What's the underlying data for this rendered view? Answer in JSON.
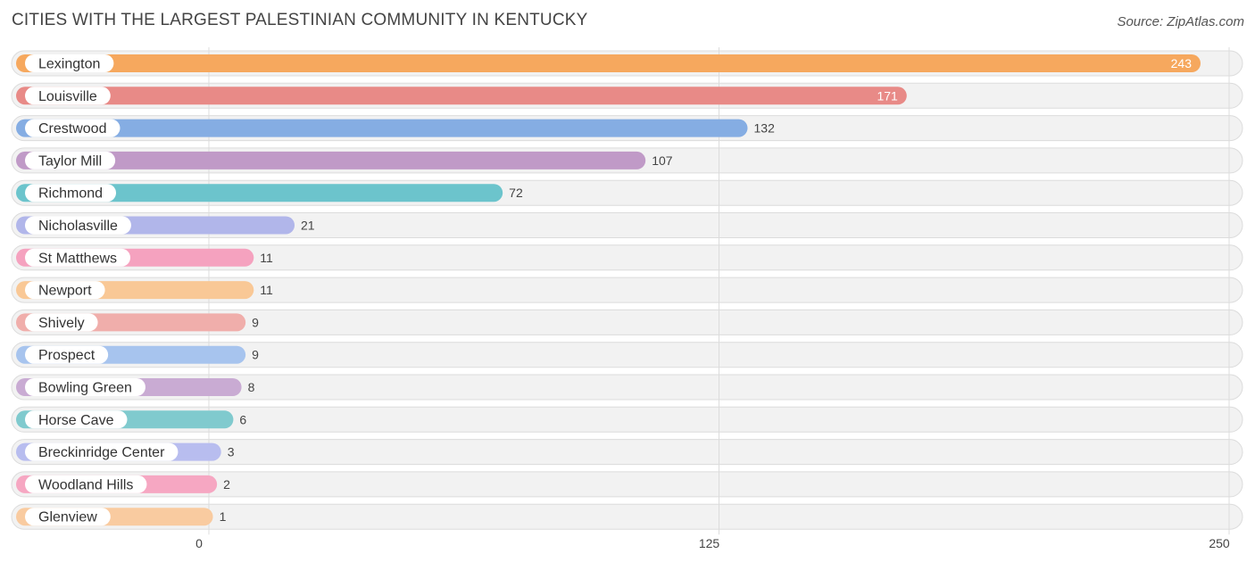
{
  "header": {
    "title": "CITIES WITH THE LARGEST PALESTINIAN COMMUNITY IN KENTUCKY",
    "source": "Source: ZipAtlas.com"
  },
  "chart_data": {
    "type": "bar",
    "orientation": "horizontal",
    "title": "CITIES WITH THE LARGEST PALESTINIAN COMMUNITY IN KENTUCKY",
    "categories": [
      "Lexington",
      "Louisville",
      "Crestwood",
      "Taylor Mill",
      "Richmond",
      "Nicholasville",
      "St Matthews",
      "Newport",
      "Shively",
      "Prospect",
      "Bowling Green",
      "Horse Cave",
      "Breckinridge Center",
      "Woodland Hills",
      "Glenview"
    ],
    "values": [
      243,
      171,
      132,
      107,
      72,
      21,
      11,
      11,
      9,
      9,
      8,
      6,
      3,
      2,
      1
    ],
    "colors": [
      "#f6a85e",
      "#e88a87",
      "#85ade3",
      "#c09ac7",
      "#6cc4cc",
      "#b1b6ea",
      "#f5a2bf",
      "#f9c896",
      "#f0aeab",
      "#a7c4ee",
      "#c9abd3",
      "#80cace",
      "#b8bdef",
      "#f6a7c2",
      "#f9cba0"
    ],
    "xlim": [
      0,
      250
    ],
    "xticks": [
      0,
      125,
      250
    ],
    "xlabel": "",
    "ylabel": "",
    "grid": true,
    "legend": "none"
  }
}
